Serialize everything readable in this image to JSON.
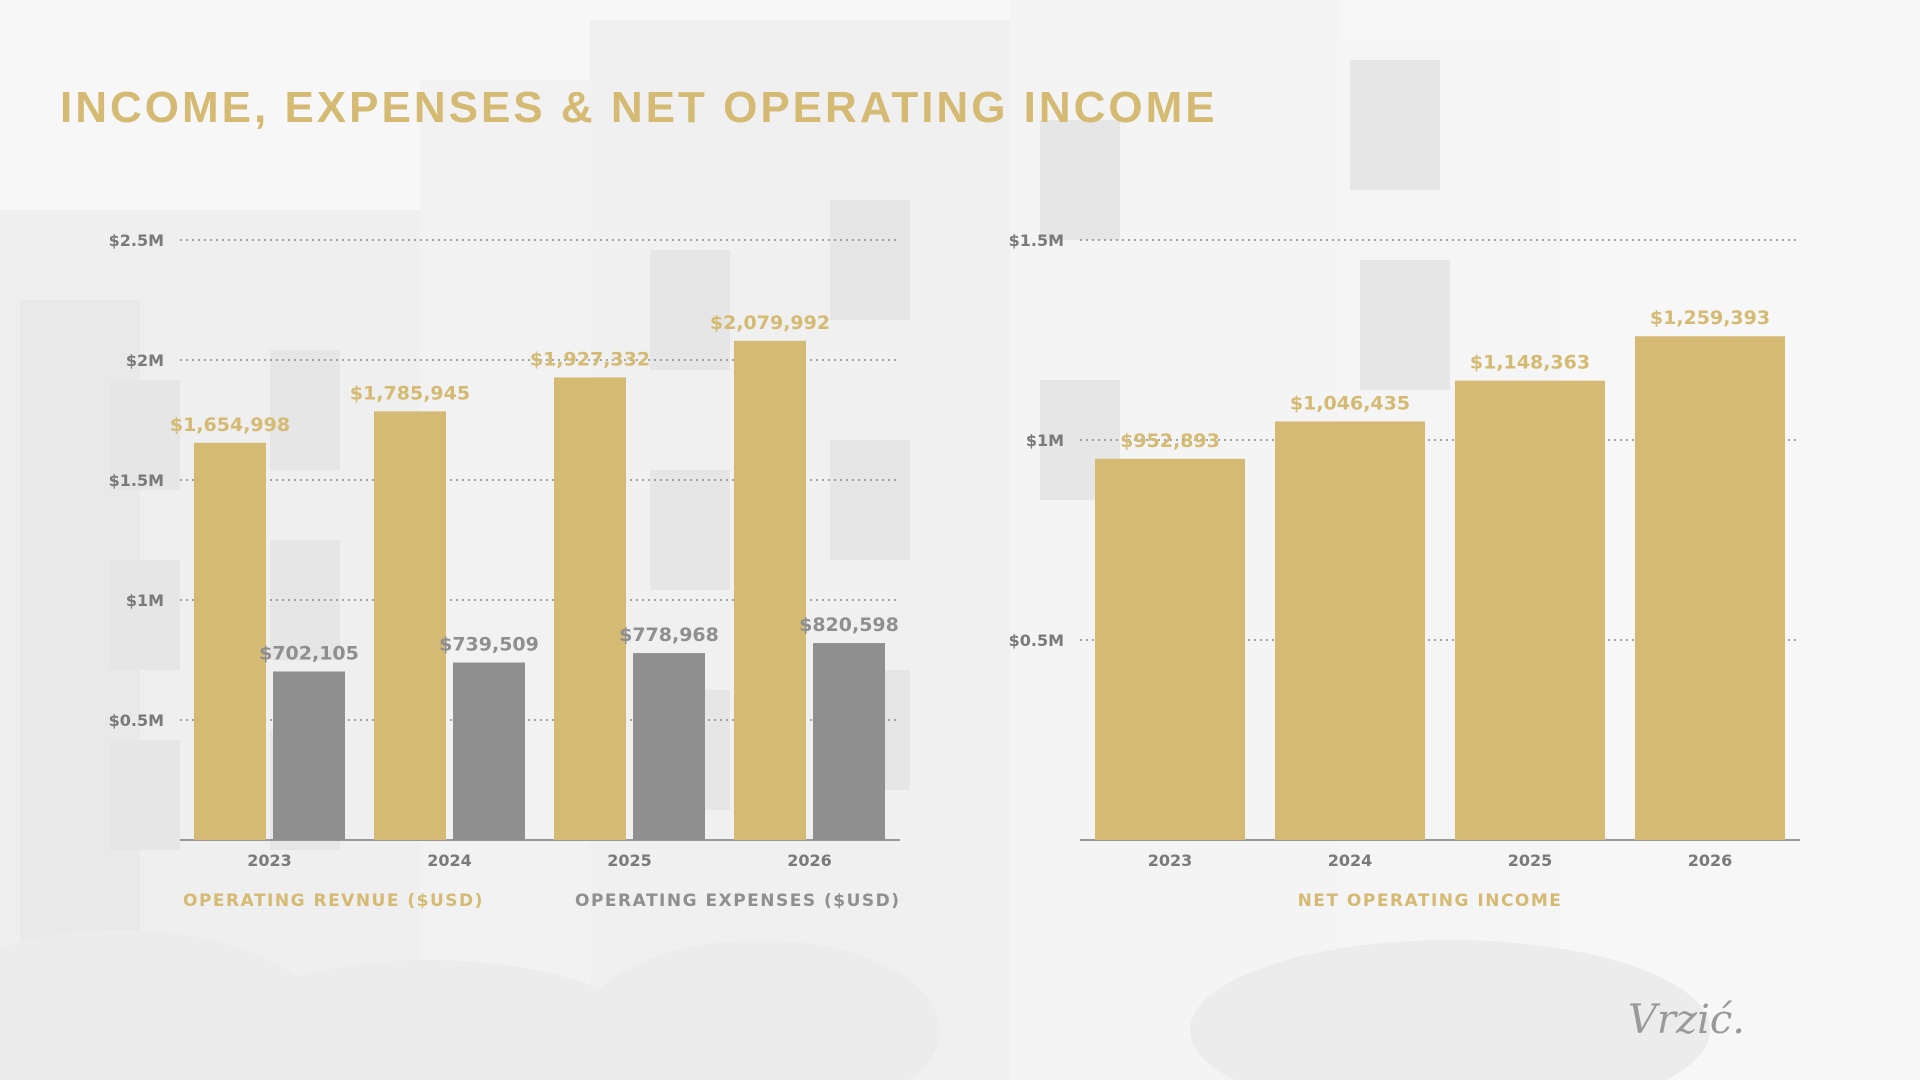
{
  "title": "INCOME, EXPENSES & NET OPERATING INCOME",
  "logo": "Vrzić.",
  "colors": {
    "gold": "#d4ba72",
    "gray": "#8f8f8f",
    "title": "#d4ba72",
    "axis_text": "#7a7a7a"
  },
  "chart_data": [
    {
      "type": "bar",
      "categories": [
        "2023",
        "2024",
        "2025",
        "2026"
      ],
      "y_ticks": [
        "$0.5M",
        "$1M",
        "$1.5M",
        "$2M",
        "$2.5M"
      ],
      "ylim": [
        0,
        2500000
      ],
      "grid": true,
      "legend": "bottom",
      "series": [
        {
          "name": "OPERATING REVNUE ($USD)",
          "values": [
            1654998,
            1785945,
            1927332,
            2079992
          ],
          "labels": [
            "$1,654,998",
            "$1,785,945",
            "$1,927,332",
            "$2,079,992"
          ],
          "color": "#d4ba72"
        },
        {
          "name": "OPERATING EXPENSES ($USD)",
          "values": [
            702105,
            739509,
            778968,
            820598
          ],
          "labels": [
            "$702,105",
            "$739,509",
            "$778,968",
            "$820,598"
          ],
          "color": "#8f8f8f"
        }
      ]
    },
    {
      "type": "bar",
      "categories": [
        "2023",
        "2024",
        "2025",
        "2026"
      ],
      "y_ticks": [
        "$0.5M",
        "$1M",
        "$1.5M"
      ],
      "ylim": [
        0,
        1500000
      ],
      "grid": true,
      "legend": "bottom",
      "series": [
        {
          "name": "NET OPERATING INCOME",
          "values": [
            952893,
            1046435,
            1148363,
            1259393
          ],
          "labels": [
            "$952,893",
            "$1,046,435",
            "$1,148,363",
            "$1,259,393"
          ],
          "color": "#d4ba72"
        }
      ]
    }
  ]
}
